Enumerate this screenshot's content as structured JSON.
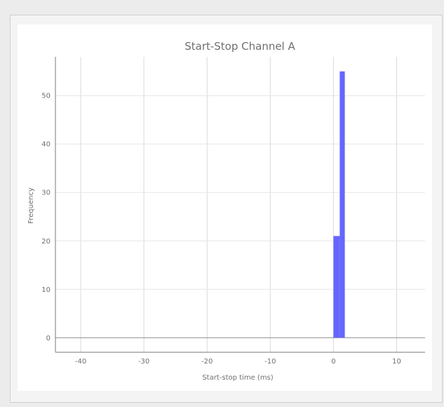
{
  "chart_data": {
    "type": "bar",
    "title": "Start-Stop Channel A",
    "xlabel": "Start-stop time (ms)",
    "ylabel": "Frequency",
    "xlim": [
      -44,
      14.5
    ],
    "ylim": [
      -3,
      58
    ],
    "xticks": [
      -40,
      -30,
      -20,
      -10,
      0,
      10
    ],
    "yticks": [
      0,
      10,
      20,
      30,
      40,
      50
    ],
    "grid": true,
    "bar_color": "#6666ff",
    "bins": [
      {
        "start": 0,
        "end": 1,
        "value": 21
      },
      {
        "start": 1,
        "end": 1.8,
        "value": 55
      }
    ]
  }
}
